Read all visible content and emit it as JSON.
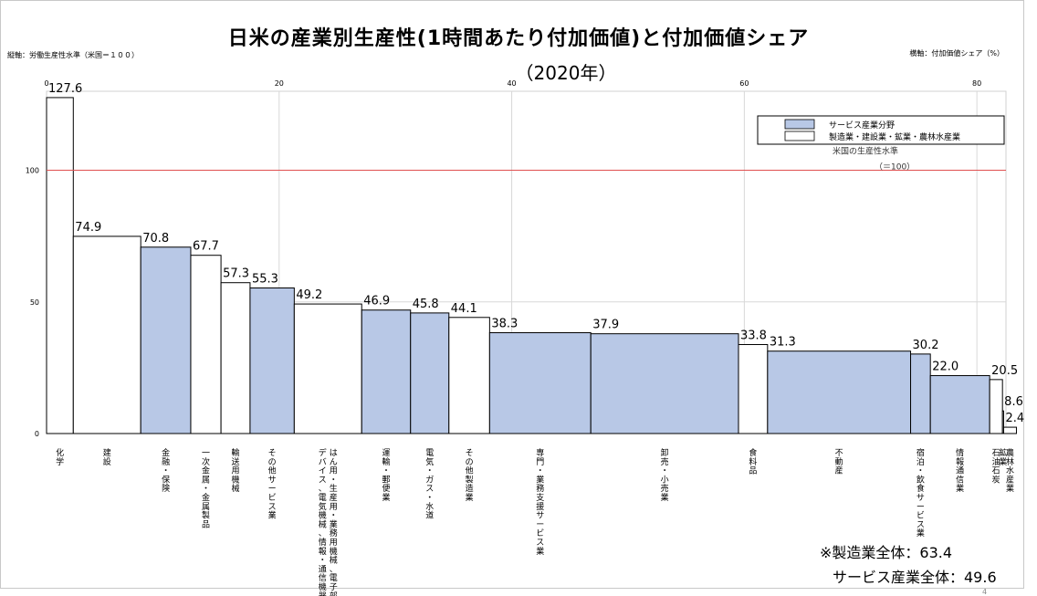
{
  "chart_data": {
    "type": "bar",
    "variant": "variable-width",
    "title": "日米の産業別生産性(1時間あたり付加価値)と付加価値シェア",
    "subtitle": "（2020年）",
    "ylabel": "縦軸：労働生産性水準（米国＝１００）",
    "xlabel": "横軸：付加価値シェア（%）",
    "xlim": [
      0,
      82.5
    ],
    "ylim": [
      0,
      130
    ],
    "xticks": [
      "0",
      "20",
      "40",
      "60",
      "80"
    ],
    "yticks": [
      "0",
      "50",
      "100"
    ],
    "reference_line": {
      "value": 100,
      "label_line1": "米国の生産性水準",
      "label_line2": "（＝100）",
      "color": "#e05050"
    },
    "legend": {
      "position": "top-right",
      "entries": [
        {
          "label": "サービス産業分野",
          "color": "#b8c8e6"
        },
        {
          "label": "製造業・建設業・鉱業・農林水産業",
          "color": "#ffffff"
        }
      ]
    },
    "bars": [
      {
        "label": "化学",
        "value": 127.6,
        "value_label": "127.6",
        "share": 2.3,
        "group": "manufacturing"
      },
      {
        "label": "建設",
        "value": 74.9,
        "value_label": "74.9",
        "share": 5.8,
        "group": "manufacturing"
      },
      {
        "label": "金融・保険",
        "value": 70.8,
        "value_label": "70.8",
        "share": 4.3,
        "group": "service"
      },
      {
        "label": "一次金属・金属製品",
        "value": 67.7,
        "value_label": "67.7",
        "share": 2.6,
        "group": "manufacturing"
      },
      {
        "label": "輸送用機械",
        "value": 57.3,
        "value_label": "57.3",
        "share": 2.5,
        "group": "manufacturing"
      },
      {
        "label": "その他サービス業",
        "value": 55.3,
        "value_label": "55.3",
        "share": 3.8,
        "group": "service"
      },
      {
        "label": "はん用・生産用・業務用機械、電子部品・デバイス、電気機械、情報・通信機器",
        "value": 49.2,
        "value_label": "49.2",
        "share": 5.8,
        "group": "manufacturing"
      },
      {
        "label": "運輸・郵便業",
        "value": 46.9,
        "value_label": "46.9",
        "share": 4.2,
        "group": "service"
      },
      {
        "label": "電気・ガス・水道",
        "value": 45.8,
        "value_label": "45.8",
        "share": 3.3,
        "group": "service"
      },
      {
        "label": "その他製造業",
        "value": 44.1,
        "value_label": "44.1",
        "share": 3.5,
        "group": "manufacturing"
      },
      {
        "label": "専門・業務支援サービス業",
        "value": 38.3,
        "value_label": "38.3",
        "share": 8.7,
        "group": "service"
      },
      {
        "label": "卸売・小売業",
        "value": 37.9,
        "value_label": "37.9",
        "share": 12.7,
        "group": "service"
      },
      {
        "label": "食料品",
        "value": 33.8,
        "value_label": "33.8",
        "share": 2.5,
        "group": "manufacturing"
      },
      {
        "label": "不動産",
        "value": 31.3,
        "value_label": "31.3",
        "share": 12.3,
        "group": "service"
      },
      {
        "label": "宿泊・飲食サービス業",
        "value": 30.2,
        "value_label": "30.2",
        "share": 1.7,
        "group": "service"
      },
      {
        "label": "情報通信業",
        "value": 22.0,
        "value_label": "22.0",
        "share": 5.1,
        "group": "service"
      },
      {
        "label": "石油石炭",
        "value": 20.5,
        "value_label": "20.5",
        "share": 1.1,
        "group": "manufacturing"
      },
      {
        "label": "鉱業",
        "value": 8.6,
        "value_label": "8.6",
        "share": 0.1,
        "group": "manufacturing"
      },
      {
        "label": "農林水産業",
        "value": 2.4,
        "value_label": "2.4",
        "share": 1.1,
        "group": "manufacturing"
      }
    ]
  },
  "notes": {
    "line1": "※製造業全体：63.4",
    "line2": "サービス産業全体：49.6"
  },
  "page_number": "4"
}
